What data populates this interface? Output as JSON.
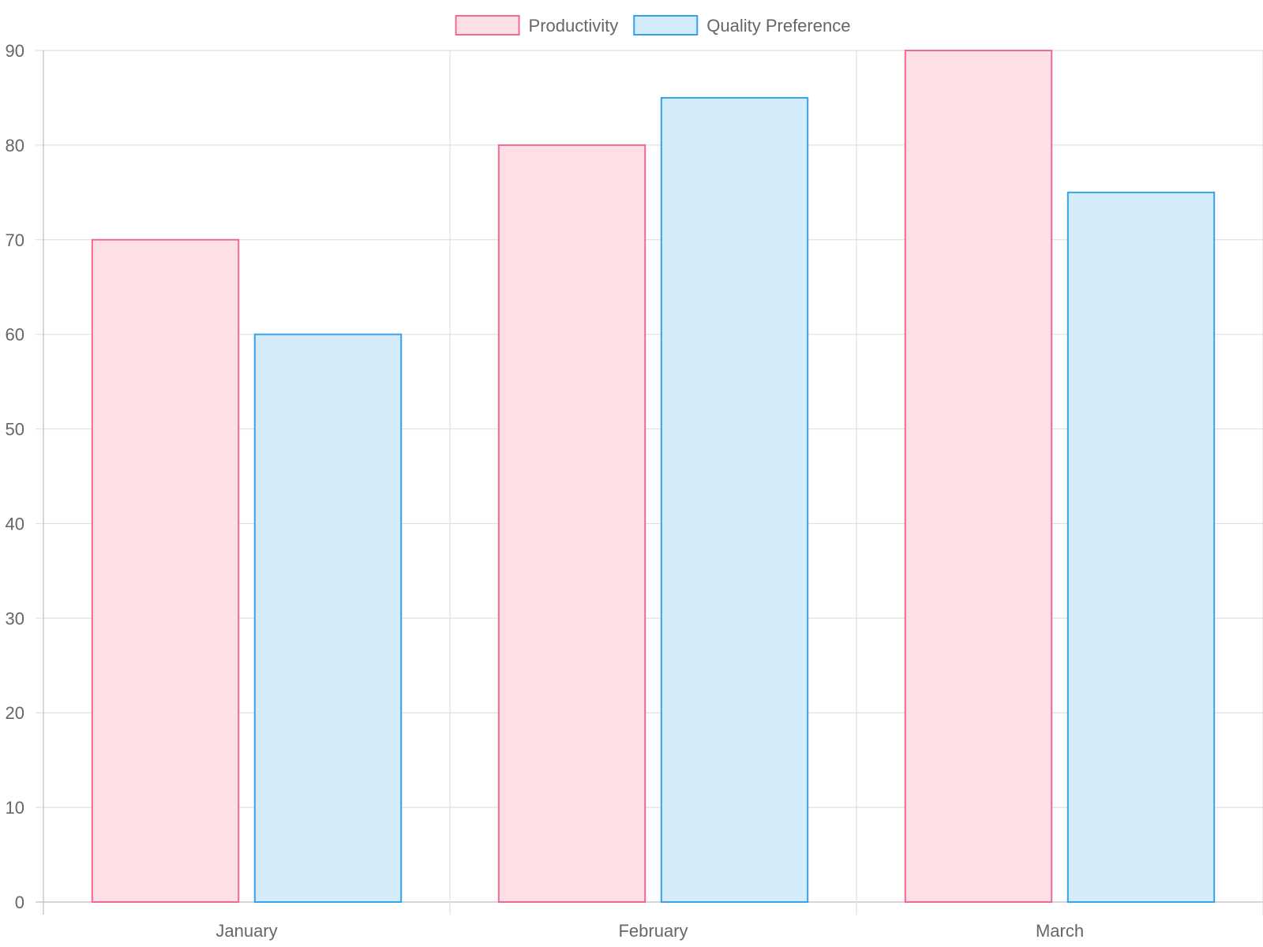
{
  "chart_data": {
    "type": "bar",
    "categories": [
      "January",
      "February",
      "March"
    ],
    "series": [
      {
        "name": "Productivity",
        "values": [
          70,
          80,
          90
        ],
        "border_color": "#f06b8f",
        "fill_color": "#fde0e6"
      },
      {
        "name": "Quality Preference",
        "values": [
          60,
          85,
          75
        ],
        "border_color": "#36a2eb",
        "fill_color": "#d4ebf9"
      }
    ],
    "ylim": [
      0,
      90
    ],
    "yticks": [
      0,
      10,
      20,
      30,
      40,
      50,
      60,
      70,
      80,
      90
    ],
    "grid": true,
    "legend_position": "top",
    "title": "",
    "xlabel": "",
    "ylabel": ""
  }
}
